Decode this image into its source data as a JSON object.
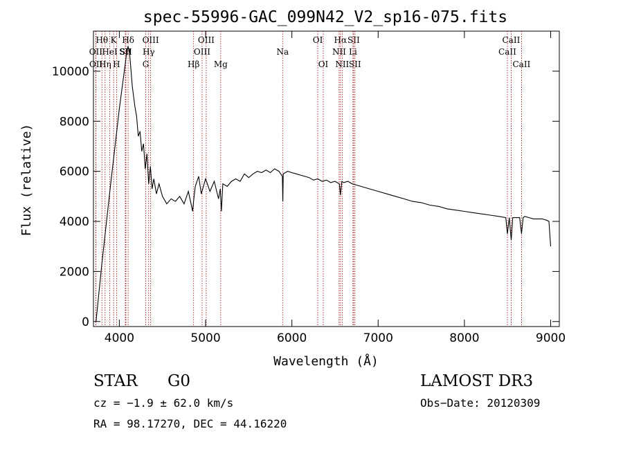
{
  "chart_data": {
    "type": "line",
    "title": "spec-55996-GAC_099N42_V2_sp16-075.fits",
    "xlabel": "Wavelength (Å)",
    "ylabel": "Flux (relative)",
    "xlim": [
      3700,
      9100
    ],
    "ylim": [
      -200,
      11600
    ],
    "xticks": [
      4000,
      5000,
      6000,
      7000,
      8000,
      9000
    ],
    "xtick_labels": [
      "4000",
      "5000",
      "6000",
      "7000",
      "8000",
      "9000"
    ],
    "yticks": [
      0,
      2000,
      4000,
      6000,
      8000,
      10000
    ],
    "ytick_labels": [
      "0",
      "2000",
      "4000",
      "6000",
      "8000",
      "10000"
    ],
    "grid": false,
    "line_color": "#000000",
    "marker_color": "#a00000",
    "series": [
      {
        "name": "spectrum",
        "x": [
          3730,
          3800,
          3900,
          4000,
          4080,
          4100,
          4120,
          4150,
          4180,
          4200,
          4220,
          4240,
          4260,
          4280,
          4300,
          4320,
          4340,
          4360,
          4380,
          4400,
          4430,
          4460,
          4500,
          4550,
          4600,
          4650,
          4700,
          4750,
          4800,
          4850,
          4860,
          4880,
          4920,
          4950,
          5000,
          5050,
          5100,
          5150,
          5170,
          5183,
          5200,
          5250,
          5300,
          5350,
          5400,
          5450,
          5500,
          5550,
          5600,
          5650,
          5700,
          5750,
          5800,
          5850,
          5890,
          5895,
          5900,
          5950,
          6000,
          6050,
          6100,
          6150,
          6200,
          6250,
          6300,
          6350,
          6400,
          6450,
          6500,
          6550,
          6563,
          6580,
          6600,
          6650,
          6700,
          6750,
          6800,
          6900,
          7000,
          7100,
          7200,
          7300,
          7400,
          7500,
          7600,
          7700,
          7800,
          7900,
          8000,
          8100,
          8200,
          8300,
          8400,
          8480,
          8498,
          8520,
          8542,
          8560,
          8600,
          8640,
          8662,
          8680,
          8700,
          8750,
          8800,
          8850,
          8900,
          8950,
          8980,
          9000
        ],
        "y": [
          0,
          2400,
          5500,
          8500,
          10600,
          11000,
          10700,
          9400,
          8600,
          8200,
          7400,
          7600,
          6800,
          7100,
          6100,
          6700,
          5500,
          6200,
          5300,
          5700,
          5100,
          5500,
          5000,
          4700,
          4900,
          4800,
          5000,
          4700,
          5200,
          4400,
          4800,
          5400,
          5800,
          5100,
          5700,
          5200,
          5600,
          4900,
          5300,
          4400,
          5500,
          5400,
          5600,
          5700,
          5600,
          5900,
          5750,
          5900,
          6000,
          5950,
          6050,
          5950,
          6100,
          6000,
          5800,
          4800,
          5900,
          6000,
          5950,
          5900,
          5850,
          5800,
          5750,
          5650,
          5700,
          5600,
          5650,
          5550,
          5600,
          5500,
          5050,
          5600,
          5550,
          5600,
          5500,
          5450,
          5400,
          5300,
          5200,
          5100,
          5000,
          4900,
          4800,
          4750,
          4650,
          4600,
          4500,
          4450,
          4400,
          4350,
          4300,
          4250,
          4200,
          4150,
          3500,
          4150,
          3250,
          4150,
          4150,
          4150,
          3500,
          4150,
          4200,
          4150,
          4100,
          4100,
          4100,
          4050,
          4000,
          3000
        ]
      }
    ],
    "line_markers": [
      {
        "name": "Hθ",
        "wl": 3798,
        "row": 1
      },
      {
        "name": "OII",
        "wl": 3727,
        "row": 2
      },
      {
        "name": "OII",
        "wl": 3729,
        "row": 3
      },
      {
        "name": "Hη",
        "wl": 3835,
        "row": 3
      },
      {
        "name": "K",
        "wl": 3934,
        "row": 1
      },
      {
        "name": "HeI",
        "wl": 3889,
        "row": 2
      },
      {
        "name": "H",
        "wl": 3968,
        "row": 3
      },
      {
        "name": "SII",
        "wl": 4069,
        "row": 2
      },
      {
        "name": "Hδ",
        "wl": 4102,
        "row": 1
      },
      {
        "name": "SII",
        "wl": 4076,
        "row": 2
      },
      {
        "name": "OIII",
        "wl": 4363,
        "row": 1
      },
      {
        "name": "Hγ",
        "wl": 4340,
        "row": 2
      },
      {
        "name": "G",
        "wl": 4306,
        "row": 3
      },
      {
        "name": "OIII",
        "wl": 5007,
        "row": 1
      },
      {
        "name": "OIII",
        "wl": 4959,
        "row": 2
      },
      {
        "name": "Hβ",
        "wl": 4861,
        "row": 3
      },
      {
        "name": "Mg",
        "wl": 5175,
        "row": 3
      },
      {
        "name": "Na",
        "wl": 5893,
        "row": 2
      },
      {
        "name": "OI",
        "wl": 6300,
        "row": 1
      },
      {
        "name": "OI",
        "wl": 6364,
        "row": 3
      },
      {
        "name": "Hα",
        "wl": 6563,
        "row": 1
      },
      {
        "name": "NII",
        "wl": 6548,
        "row": 2
      },
      {
        "name": "NII",
        "wl": 6583,
        "row": 3
      },
      {
        "name": "SII",
        "wl": 6716,
        "row": 1
      },
      {
        "name": "Li",
        "wl": 6708,
        "row": 2
      },
      {
        "name": "SII",
        "wl": 6731,
        "row": 3
      },
      {
        "name": "CaII",
        "wl": 8542,
        "row": 1
      },
      {
        "name": "CaII",
        "wl": 8498,
        "row": 2
      },
      {
        "name": "CaII",
        "wl": 8662,
        "row": 3
      }
    ]
  },
  "info": {
    "object_class": "STAR",
    "subclass": "G0",
    "survey": "LAMOST DR3",
    "cz": "cz = −1.9 ± 62.0 km/s",
    "obs_date": "Obs−Date: 20120309",
    "coords": "RA =  98.17270, DEC =  44.16220"
  }
}
